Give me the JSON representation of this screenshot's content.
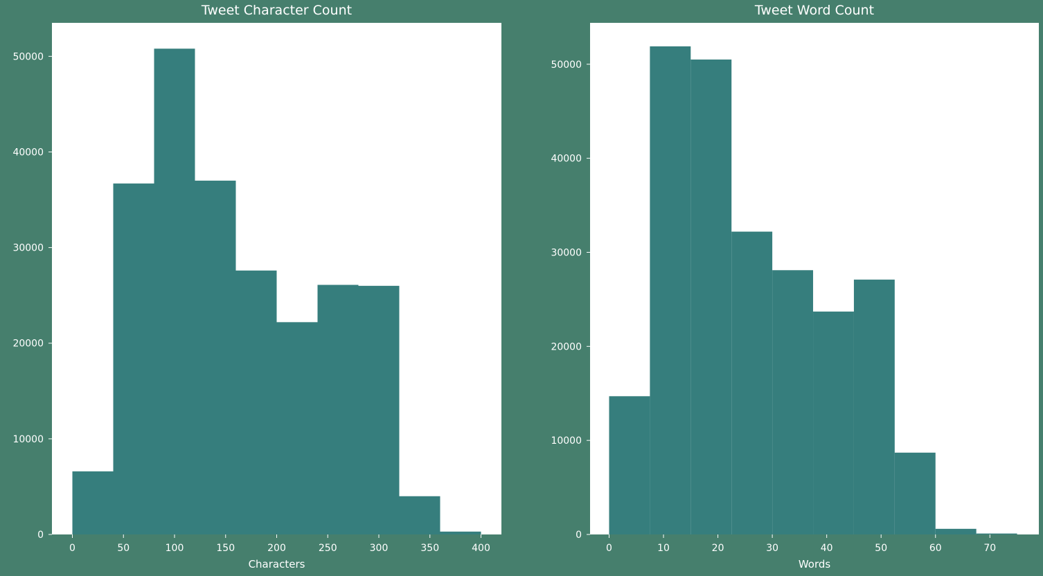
{
  "figure": {
    "background": "#467f6d",
    "plot_background": "#ffffff",
    "bar_color": "#367e7d",
    "text_color": "#ffffff"
  },
  "chart_data": [
    {
      "type": "bar",
      "title": "Tweet Character Count",
      "xlabel": "Characters",
      "ylabel": "",
      "bin_edges": [
        0,
        40,
        80,
        120,
        160,
        200,
        240,
        280,
        320,
        360,
        400
      ],
      "values": [
        6600,
        36700,
        50800,
        37000,
        27600,
        22200,
        26100,
        26000,
        4000,
        300
      ],
      "xlim": [
        -20,
        420
      ],
      "ylim": [
        0,
        53500
      ],
      "xticks": [
        0,
        50,
        100,
        150,
        200,
        250,
        300,
        350,
        400
      ],
      "xtick_labels": [
        "0",
        "50",
        "100",
        "150",
        "200",
        "250",
        "300",
        "350",
        "400"
      ],
      "yticks": [
        0,
        10000,
        20000,
        30000,
        40000,
        50000
      ],
      "ytick_labels": [
        "0",
        "10000",
        "20000",
        "30000",
        "40000",
        "50000"
      ],
      "grid": false
    },
    {
      "type": "bar",
      "title": "Tweet Word Count",
      "xlabel": "Words",
      "ylabel": "",
      "bin_edges": [
        0,
        7.5,
        15,
        22.5,
        30,
        37.5,
        45,
        52.5,
        60,
        67.5,
        75
      ],
      "values": [
        14700,
        51900,
        50500,
        32200,
        28100,
        23700,
        27100,
        8700,
        600,
        100
      ],
      "xlim": [
        -3.5,
        79
      ],
      "ylim": [
        0,
        54400
      ],
      "xticks": [
        0,
        10,
        20,
        30,
        40,
        50,
        60,
        70
      ],
      "xtick_labels": [
        "0",
        "10",
        "20",
        "30",
        "40",
        "50",
        "60",
        "70"
      ],
      "yticks": [
        0,
        10000,
        20000,
        30000,
        40000,
        50000
      ],
      "ytick_labels": [
        "0",
        "10000",
        "20000",
        "30000",
        "40000",
        "50000"
      ],
      "grid": false
    }
  ]
}
